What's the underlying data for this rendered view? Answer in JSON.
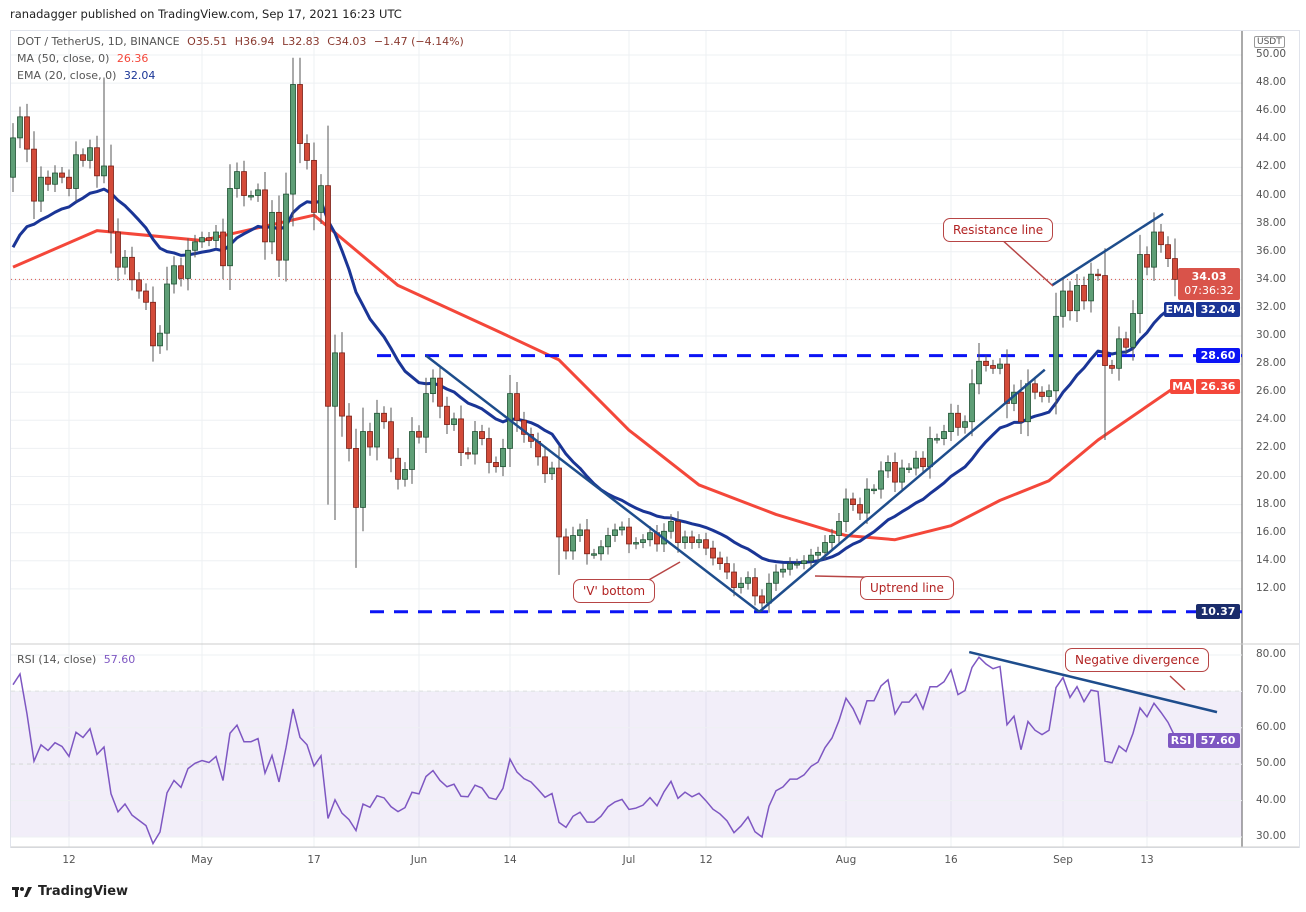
{
  "publisher_line": "ranadagger published on TradingView.com, Sep 17, 2021 16:23 UTC",
  "legend": {
    "symbol": "DOT / TetherUS, 1D, BINANCE",
    "open": "O35.51",
    "high": "H36.94",
    "low": "L32.83",
    "close": "C34.03",
    "change": "−1.47 (−4.14%)",
    "ma_label": "MA (50, close, 0)",
    "ma_value": "26.36",
    "ema_label": "EMA (20, close, 0)",
    "ema_value": "32.04",
    "rsi_label": "RSI (14, close)",
    "rsi_value": "57.60"
  },
  "price_axis": {
    "currency": "USDT",
    "ticks": [
      "12.00",
      "14.00",
      "16.00",
      "18.00",
      "20.00",
      "22.00",
      "24.00",
      "26.00",
      "28.00",
      "30.00",
      "32.00",
      "34.00",
      "36.00",
      "38.00",
      "40.00",
      "42.00",
      "44.00",
      "46.00",
      "48.00",
      "50.00"
    ],
    "last_price": "34.03",
    "countdown": "07:36:32",
    "ema_tag": "EMA",
    "ema_price": "32.04",
    "resistance_price": "28.60",
    "ma_tag": "MA",
    "ma_price": "26.36",
    "support_price": "10.37"
  },
  "rsi_axis": {
    "ticks": [
      "30.00",
      "40.00",
      "50.00",
      "60.00",
      "70.00",
      "80.00"
    ],
    "tag": "RSI",
    "value": "57.60"
  },
  "time_axis": [
    {
      "label": "12",
      "day": 8
    },
    {
      "label": "May",
      "day": 27
    },
    {
      "label": "17",
      "day": 43
    },
    {
      "label": "Jun",
      "day": 58
    },
    {
      "label": "14",
      "day": 71
    },
    {
      "label": "Jul",
      "day": 88
    },
    {
      "label": "12",
      "day": 99
    },
    {
      "label": "Aug",
      "day": 119
    },
    {
      "label": "16",
      "day": 134
    },
    {
      "label": "Sep",
      "day": 150
    },
    {
      "label": "13",
      "day": 162
    }
  ],
  "annotations": {
    "resistance": "Resistance line",
    "v_bottom": "'V' bottom",
    "uptrend": "Uptrend line",
    "divergence": "Negative divergence"
  },
  "footer": "TradingView",
  "colors": {
    "up": "#5e9e76",
    "down": "#d34b39",
    "ema": "#1a3596",
    "ma": "#f4473a",
    "trend": "#1e4d8c",
    "dash": "#0b14f5",
    "rsi": "#7e57c2"
  },
  "chart_data": {
    "type": "candlestick",
    "title": "DOT / TetherUS, 1D, BINANCE",
    "start_date": "2021-04-04",
    "first_open": 41.3,
    "close": [
      44.1,
      45.6,
      43.3,
      39.6,
      41.3,
      40.8,
      41.6,
      41.3,
      40.5,
      42.9,
      42.5,
      43.4,
      41.4,
      42.1,
      37.4,
      34.9,
      35.6,
      34.0,
      33.2,
      32.4,
      29.3,
      30.2,
      33.7,
      35.0,
      34.1,
      36.1,
      36.7,
      37.0,
      36.8,
      37.4,
      35.0,
      40.5,
      41.7,
      40.0,
      40.0,
      40.4,
      36.7,
      38.8,
      35.4,
      40.1,
      47.9,
      43.7,
      42.5,
      38.8,
      40.7,
      25.0,
      28.8,
      24.3,
      22.0,
      17.8,
      23.2,
      22.1,
      24.5,
      23.9,
      21.3,
      19.8,
      20.5,
      23.2,
      22.8,
      25.9,
      27.0,
      25.0,
      23.7,
      24.1,
      21.7,
      21.6,
      23.2,
      22.7,
      21.0,
      20.7,
      22.0,
      25.9,
      24.0,
      23.0,
      22.5,
      21.4,
      20.2,
      20.6,
      15.7,
      14.7,
      15.8,
      16.2,
      14.5,
      14.5,
      15.0,
      15.8,
      16.2,
      16.4,
      15.2,
      15.3,
      15.5,
      16.0,
      15.2,
      16.1,
      16.8,
      15.3,
      15.7,
      15.3,
      15.5,
      14.9,
      14.2,
      13.8,
      13.2,
      12.1,
      12.4,
      12.8,
      11.5,
      11.0,
      12.4,
      13.2,
      13.4,
      13.8,
      13.8,
      14.0,
      14.4,
      14.6,
      15.3,
      15.8,
      16.8,
      18.4,
      18.0,
      17.4,
      19.1,
      19.1,
      20.4,
      21.0,
      19.6,
      20.6,
      20.6,
      21.3,
      20.7,
      22.7,
      22.7,
      23.2,
      24.5,
      23.5,
      23.9,
      26.6,
      28.2,
      27.9,
      27.7,
      28.0,
      25.2,
      26.0,
      23.9,
      26.6,
      26.0,
      25.7,
      26.1,
      31.4,
      33.2,
      31.8,
      33.6,
      32.5,
      34.4,
      34.3,
      27.9,
      27.7,
      29.8,
      29.2,
      31.6,
      35.8,
      34.9,
      37.4,
      36.5,
      35.51,
      34.03
    ],
    "wick_extremes": {
      "13": {
        "h": 48.4
      },
      "40": {
        "h": 49.8
      },
      "41": {
        "h": 49.8
      },
      "45": {
        "l": 18.0
      },
      "46": {
        "l": 16.9
      },
      "49": {
        "l": 13.5
      },
      "78": {
        "l": 13.0
      },
      "107": {
        "l": 10.37
      },
      "138": {
        "h": 29.5
      },
      "156": {
        "l": 22.6
      },
      "163": {
        "h": 38.8
      },
      "166": {
        "h": 36.94,
        "l": 32.83
      }
    },
    "ema_seed": 35.5,
    "ma50_samples": [
      [
        0,
        34.9
      ],
      [
        12,
        37.5
      ],
      [
        27,
        36.8
      ],
      [
        43,
        38.6
      ],
      [
        55,
        33.6
      ],
      [
        69,
        30.4
      ],
      [
        78,
        28.3
      ],
      [
        88,
        23.3
      ],
      [
        98,
        19.4
      ],
      [
        109,
        17.3
      ],
      [
        119,
        15.8
      ],
      [
        126,
        15.5
      ],
      [
        134,
        16.5
      ],
      [
        141,
        18.3
      ],
      [
        148,
        19.7
      ],
      [
        155,
        22.6
      ],
      [
        166,
        26.36
      ]
    ],
    "horizontal_levels": [
      {
        "price": 28.6,
        "from_day": 52
      },
      {
        "price": 10.37,
        "from_day": 51
      }
    ],
    "trend_lines": [
      {
        "name": "v-down",
        "points": [
          [
            59,
            28.6
          ],
          [
            106.6,
            10.37
          ]
        ]
      },
      {
        "name": "v-up",
        "points": [
          [
            106.6,
            10.37
          ],
          [
            147.4,
            27.6
          ]
        ]
      },
      {
        "name": "resistance",
        "points": [
          [
            148.4,
            33.6
          ],
          [
            164.3,
            38.7
          ]
        ]
      }
    ],
    "rsi_divergence_line": [
      [
        136.6,
        80.8
      ],
      [
        172,
        64.3
      ]
    ],
    "ylim": [
      9.5,
      51
    ],
    "rsi_ylim": [
      27,
      83
    ]
  }
}
